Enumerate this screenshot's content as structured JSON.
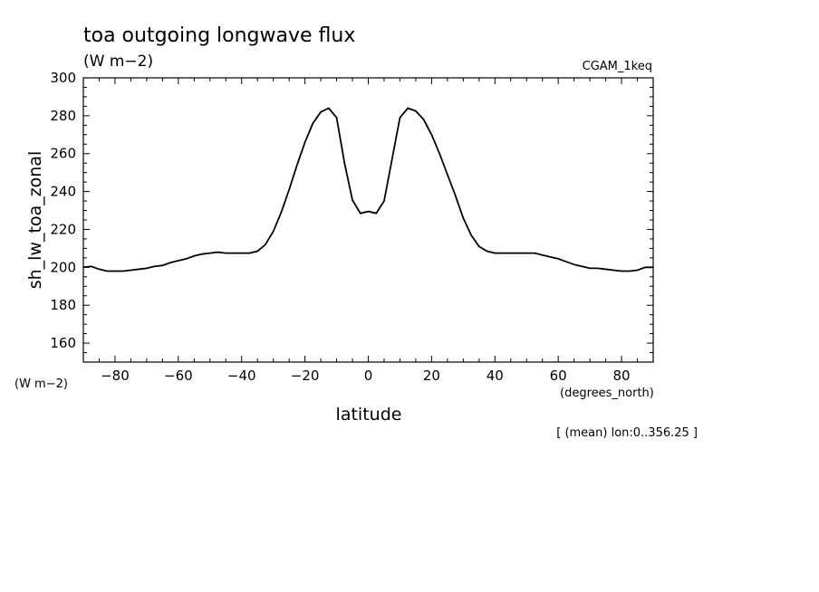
{
  "chart_data": {
    "type": "line",
    "title": "toa outgoing longwave flux",
    "subtitle_units": "(W m−2)",
    "dataset_label": "CGAM_1keq",
    "ylabel": "sh_lw_toa_zonal",
    "ylabel_units": "(W m−2)",
    "xlabel": "latitude",
    "xlabel_units": "(degrees_north)",
    "footnote": "[ (mean) lon:0..356.25 ]",
    "xlim": [
      -90,
      90
    ],
    "ylim": [
      150,
      300
    ],
    "x_ticks": [
      -80,
      -60,
      -40,
      -20,
      0,
      20,
      40,
      60,
      80
    ],
    "y_ticks": [
      160,
      180,
      200,
      220,
      240,
      260,
      280,
      300
    ],
    "grid": false,
    "line_color": "#000000",
    "series": [
      {
        "x": [
          -90,
          -87.5,
          -85,
          -82.5,
          -80,
          -77.5,
          -75,
          -72.5,
          -70,
          -67.5,
          -65,
          -62.5,
          -60,
          -57.5,
          -55,
          -52.5,
          -50,
          -47.5,
          -45,
          -42.5,
          -40,
          -37.5,
          -35,
          -32.5,
          -30,
          -27.5,
          -25,
          -22.5,
          -20,
          -17.5,
          -15,
          -12.5,
          -10,
          -7.5,
          -5,
          -2.5,
          0,
          2.5,
          5,
          7.5,
          10,
          12.5,
          15,
          17.5,
          20,
          22.5,
          25,
          27.5,
          30,
          32.5,
          35,
          37.5,
          40,
          42.5,
          45,
          47.5,
          50,
          52.5,
          55,
          57.5,
          60,
          62.5,
          65,
          67.5,
          70,
          72.5,
          75,
          77.5,
          80,
          82.5,
          85,
          87.5,
          90
        ],
        "values": [
          200,
          200.5,
          199,
          198,
          198,
          198,
          198.5,
          199,
          199.5,
          200.5,
          201,
          202.5,
          203.5,
          204.5,
          206,
          207,
          207.5,
          208,
          207.5,
          207.5,
          207.5,
          207.5,
          208.5,
          212,
          219,
          229,
          241,
          254,
          266,
          276,
          282,
          284,
          279,
          255,
          235.5,
          228.5,
          229.5,
          228.5,
          235,
          257,
          279,
          284,
          282.5,
          278,
          270,
          260,
          249,
          238,
          226,
          217,
          211,
          208.5,
          207.5,
          207.5,
          207.5,
          207.5,
          207.5,
          207.5,
          206.5,
          205.5,
          204.5,
          203,
          201.5,
          200.5,
          199.5,
          199.5,
          199,
          198.5,
          198,
          198,
          198.5,
          200,
          200
        ]
      }
    ]
  }
}
